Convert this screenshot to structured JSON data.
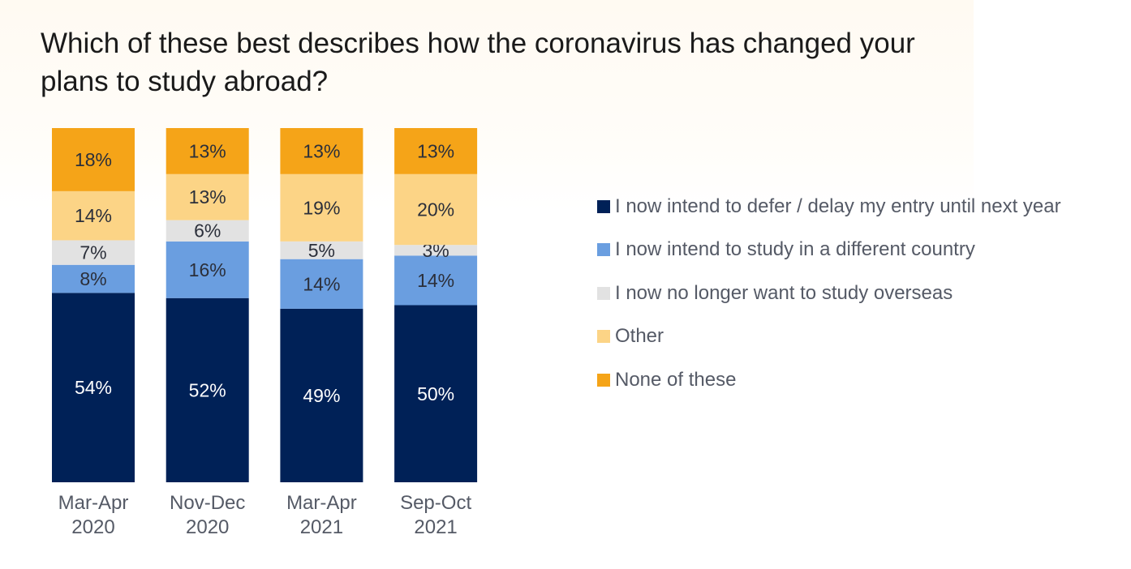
{
  "chart_data": {
    "type": "bar",
    "stacked": true,
    "title": "Which of these best describes how the coronavirus has changed your plans to study abroad?",
    "categories": [
      [
        "Mar-Apr",
        "2020"
      ],
      [
        "Nov-Dec",
        "2020"
      ],
      [
        "Mar-Apr",
        "2021"
      ],
      [
        "Sep-Oct",
        "2021"
      ]
    ],
    "ylim": [
      0,
      100
    ],
    "grid": false,
    "legend_position": "right",
    "series": [
      {
        "name": "I now intend to defer / delay my entry until next year",
        "color": "#002157",
        "label_color": "#ffffff",
        "values": [
          54,
          52,
          49,
          50
        ]
      },
      {
        "name": "I now intend to study in a different country",
        "color": "#6a9ee0",
        "label_color": "#2b2f3a",
        "values": [
          8,
          16,
          14,
          14
        ]
      },
      {
        "name": "I now no longer want to study overseas",
        "color": "#e2e2e2",
        "label_color": "#2b2f3a",
        "values": [
          7,
          6,
          5,
          3
        ]
      },
      {
        "name": "Other",
        "color": "#fcd486",
        "label_color": "#2b2f3a",
        "values": [
          14,
          13,
          19,
          20
        ]
      },
      {
        "name": "None of these",
        "color": "#f5a418",
        "label_color": "#2b2f3a",
        "values": [
          18,
          13,
          13,
          13
        ]
      }
    ],
    "value_suffix": "%"
  }
}
